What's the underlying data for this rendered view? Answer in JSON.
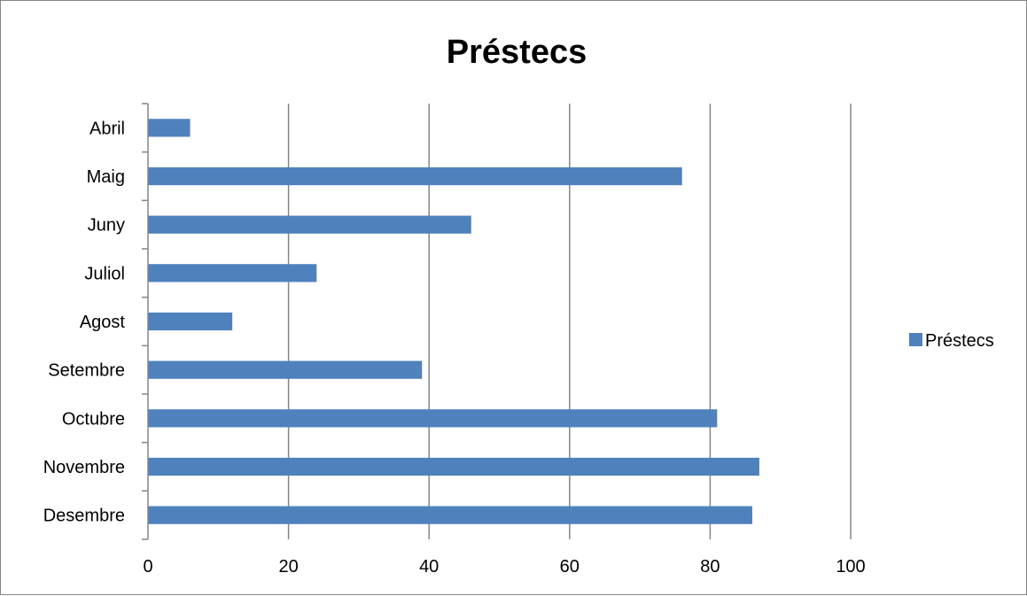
{
  "chart_data": {
    "type": "bar",
    "orientation": "horizontal",
    "title": "Préstecs",
    "xlabel": "",
    "ylabel": "",
    "categories": [
      "Abril",
      "Maig",
      "Juny",
      "Juliol",
      "Agost",
      "Setembre",
      "Octubre",
      "Novembre",
      "Desembre"
    ],
    "series": [
      {
        "name": "Préstecs",
        "color": "#4F81BD",
        "values": [
          6,
          76,
          46,
          24,
          12,
          39,
          81,
          87,
          86
        ]
      }
    ],
    "xlim": [
      0,
      100
    ],
    "x_ticks": [
      0,
      20,
      40,
      60,
      80,
      100
    ],
    "grid": "vertical",
    "legend_position": "right"
  }
}
